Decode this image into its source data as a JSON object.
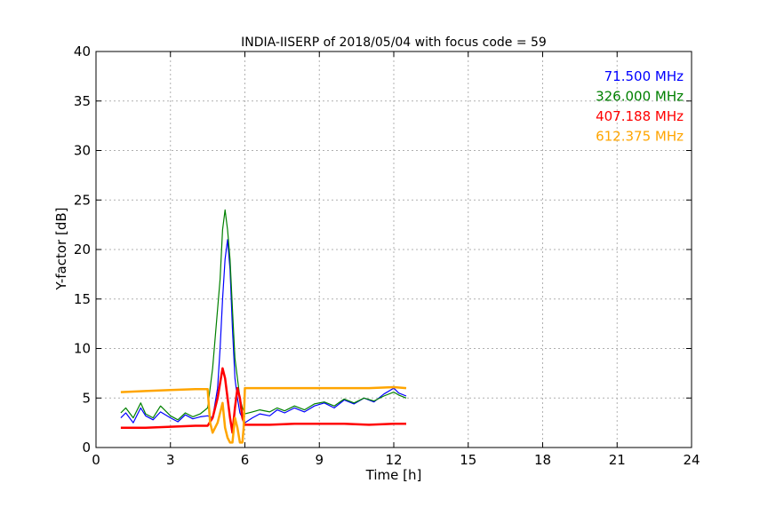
{
  "chart_data": {
    "type": "line",
    "title": "INDIA-IISERP of 2018/05/04 with focus code = 59",
    "xlabel": "Time [h]",
    "ylabel": "Y-factor [dB]",
    "xlim": [
      0,
      24
    ],
    "ylim": [
      0,
      40
    ],
    "xticks": [
      0,
      3,
      6,
      9,
      12,
      15,
      18,
      21,
      24
    ],
    "yticks": [
      0,
      5,
      10,
      15,
      20,
      25,
      30,
      35,
      40
    ],
    "xtick_labels": [
      "0",
      "3",
      "6",
      "9",
      "12",
      "15",
      "18",
      "21",
      "24"
    ],
    "ytick_labels": [
      "0",
      "5",
      "10",
      "15",
      "20",
      "25",
      "30",
      "35",
      "40"
    ],
    "grid": true,
    "legend_position": "top-right",
    "series": [
      {
        "name": "71.500 MHz",
        "color": "#0000ff",
        "x": [
          1.0,
          1.2,
          1.5,
          1.8,
          2.0,
          2.3,
          2.6,
          3.0,
          3.3,
          3.6,
          3.9,
          4.2,
          4.5,
          4.7,
          4.9,
          5.0,
          5.1,
          5.2,
          5.3,
          5.4,
          5.5,
          5.6,
          5.7,
          5.8,
          5.9,
          6.0,
          6.3,
          6.6,
          7.0,
          7.3,
          7.6,
          8.0,
          8.4,
          8.8,
          9.2,
          9.6,
          10.0,
          10.4,
          10.8,
          11.2,
          11.6,
          12.0,
          12.2,
          12.5
        ],
        "values": [
          3.0,
          3.5,
          2.5,
          4.0,
          3.2,
          2.8,
          3.6,
          3.0,
          2.6,
          3.3,
          2.9,
          3.1,
          3.2,
          3.0,
          6.0,
          10.0,
          15.0,
          19.0,
          21.0,
          18.0,
          12.0,
          7.0,
          5.0,
          3.5,
          3.0,
          2.5,
          3.0,
          3.4,
          3.2,
          3.8,
          3.5,
          4.0,
          3.6,
          4.2,
          4.5,
          4.0,
          4.8,
          4.4,
          5.0,
          4.6,
          5.4,
          6.0,
          5.5,
          5.2
        ]
      },
      {
        "name": "326.000 MHz",
        "color": "#008000",
        "x": [
          1.0,
          1.2,
          1.5,
          1.8,
          2.0,
          2.3,
          2.6,
          3.0,
          3.3,
          3.6,
          3.9,
          4.2,
          4.5,
          4.7,
          4.9,
          5.0,
          5.1,
          5.2,
          5.3,
          5.4,
          5.5,
          5.6,
          5.7,
          5.8,
          5.9,
          6.0,
          6.3,
          6.6,
          7.0,
          7.3,
          7.6,
          8.0,
          8.4,
          8.8,
          9.2,
          9.6,
          10.0,
          10.4,
          10.8,
          11.2,
          11.6,
          12.0,
          12.2,
          12.5
        ],
        "values": [
          3.5,
          4.0,
          3.0,
          4.5,
          3.4,
          3.0,
          4.2,
          3.2,
          2.8,
          3.5,
          3.1,
          3.4,
          4.0,
          8.0,
          14.0,
          17.0,
          22.0,
          24.0,
          22.0,
          19.0,
          14.0,
          9.0,
          7.0,
          5.0,
          4.0,
          3.4,
          3.6,
          3.8,
          3.6,
          4.0,
          3.7,
          4.2,
          3.8,
          4.4,
          4.6,
          4.2,
          4.9,
          4.5,
          5.0,
          4.7,
          5.2,
          5.6,
          5.3,
          5.0
        ]
      },
      {
        "name": "407.188 MHz",
        "color": "#ff0000",
        "x": [
          1.0,
          2.0,
          3.0,
          4.0,
          4.5,
          4.7,
          4.9,
          5.0,
          5.1,
          5.2,
          5.3,
          5.4,
          5.5,
          5.6,
          5.7,
          5.8,
          5.9,
          6.0,
          7.0,
          8.0,
          9.0,
          10.0,
          11.0,
          12.0,
          12.5
        ],
        "values": [
          2.0,
          2.0,
          2.1,
          2.2,
          2.2,
          3.0,
          5.0,
          6.5,
          8.0,
          7.0,
          5.0,
          3.0,
          1.5,
          4.0,
          6.0,
          5.0,
          3.0,
          2.3,
          2.3,
          2.4,
          2.4,
          2.4,
          2.3,
          2.4,
          2.4
        ]
      },
      {
        "name": "612.375 MHz",
        "color": "#ffa500",
        "x": [
          1.0,
          2.0,
          3.0,
          4.0,
          4.5,
          4.6,
          4.7,
          4.9,
          5.0,
          5.1,
          5.2,
          5.3,
          5.4,
          5.5,
          5.6,
          5.7,
          5.8,
          5.9,
          5.95,
          6.0,
          7.0,
          8.0,
          9.0,
          10.0,
          11.0,
          12.0,
          12.5
        ],
        "values": [
          5.6,
          5.7,
          5.8,
          5.9,
          5.9,
          2.5,
          1.5,
          2.5,
          3.5,
          4.5,
          2.0,
          1.0,
          0.5,
          0.5,
          3.0,
          2.0,
          0.5,
          0.5,
          2.0,
          6.0,
          6.0,
          6.0,
          6.0,
          6.0,
          6.0,
          6.1,
          6.0
        ]
      }
    ]
  }
}
